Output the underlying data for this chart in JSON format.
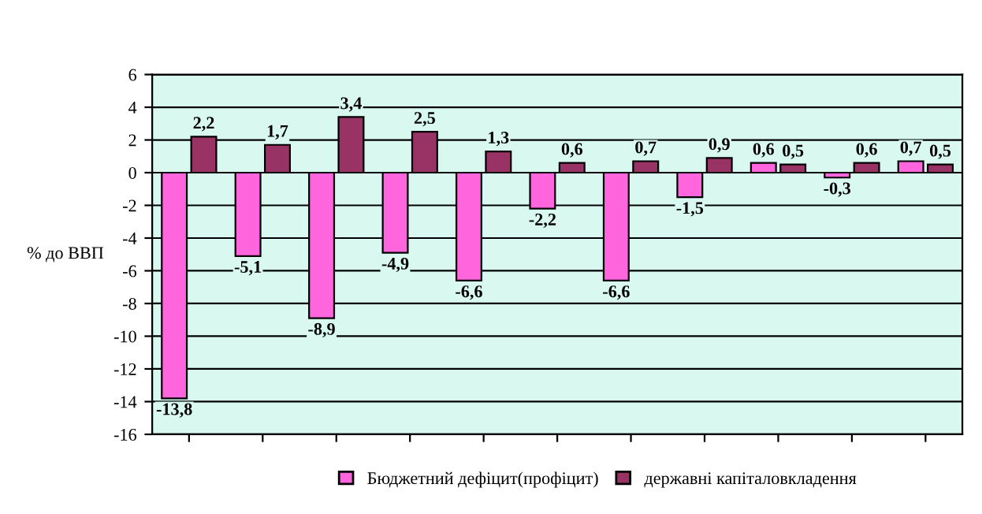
{
  "chart_data": {
    "type": "bar",
    "ylabel": "% до ВВП",
    "categories": [
      null,
      null,
      null,
      null,
      null,
      null,
      null,
      null,
      null,
      null,
      null
    ],
    "series": [
      {
        "name": "Бюджетний дефіцит(профіцит)",
        "color": "#ff66dd",
        "values": [
          -13.8,
          -5.1,
          -8.9,
          -4.9,
          -6.6,
          -2.2,
          -6.6,
          -1.5,
          0.6,
          -0.3,
          0.7
        ],
        "value_labels": [
          "-13,8",
          "-5,1",
          "-8,9",
          "-4,9",
          "-6,6",
          "-2,2",
          "-6,6",
          "-1,5",
          "0,6",
          "-0,3",
          "0,7"
        ]
      },
      {
        "name": "державні капіталовкладення",
        "color": "#993366",
        "values": [
          2.2,
          1.7,
          3.4,
          2.5,
          1.3,
          0.6,
          0.7,
          0.9,
          0.5,
          0.6,
          0.5
        ],
        "value_labels": [
          "2,2",
          "1,7",
          "3,4",
          "2,5",
          "1,3",
          "0,6",
          "0,7",
          "0,9",
          "0,5",
          "0,6",
          "0,5"
        ]
      }
    ],
    "ylim": [
      -16,
      6
    ],
    "yticks": [
      -16,
      -14,
      -12,
      -10,
      -8,
      -6,
      -4,
      -2,
      0,
      2,
      4,
      6
    ],
    "grid": "y",
    "legend": "bottom"
  }
}
